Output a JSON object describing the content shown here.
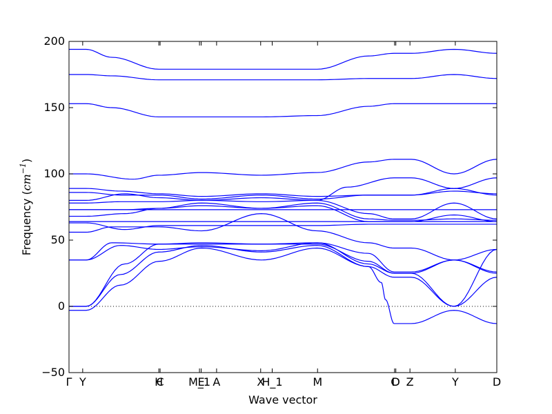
{
  "chart_data": {
    "type": "line",
    "title": "",
    "xlabel": "Wave vector",
    "ylabel": "Frequency (cm⁻¹)",
    "ylabel_prefix": "Frequency (",
    "ylabel_unit": "cm",
    "ylabel_exp": "−1",
    "ylabel_suffix": ")",
    "ylim": [
      -50,
      200
    ],
    "yticks": [
      -50,
      0,
      50,
      100,
      150,
      200
    ],
    "ytick_labels": [
      "−50",
      "0",
      "50",
      "100",
      "150",
      "200"
    ],
    "xlim": [
      0,
      1
    ],
    "xticks": [
      {
        "label": "Γ",
        "x": 0.0
      },
      {
        "label": "Y",
        "x": 0.032
      },
      {
        "label": "H",
        "x": 0.21
      },
      {
        "label": "C",
        "x": 0.213
      },
      {
        "label": "M_1",
        "x": 0.305
      },
      {
        "label": "E",
        "x": 0.309
      },
      {
        "label": "A",
        "x": 0.345
      },
      {
        "label": "X",
        "x": 0.448
      },
      {
        "label": "H_1",
        "x": 0.475
      },
      {
        "label": "M",
        "x": 0.581
      },
      {
        "label": "C",
        "x": 0.761
      },
      {
        "label": "D",
        "x": 0.764
      },
      {
        "label": "Z",
        "x": 0.797
      },
      {
        "label": "Y",
        "x": 0.903
      },
      {
        "label": "D",
        "x": 1.0
      }
    ],
    "zero_line": true,
    "line_color": "#0000ff",
    "series": [
      {
        "x": [
          0,
          0.04,
          0.1,
          0.21,
          0.35,
          0.45,
          0.58,
          0.7,
          0.76,
          0.8,
          0.9,
          1.0
        ],
        "y": [
          194,
          194,
          188,
          179,
          179,
          179,
          179,
          189,
          191,
          191,
          194,
          191
        ]
      },
      {
        "x": [
          0,
          0.04,
          0.1,
          0.21,
          0.35,
          0.45,
          0.58,
          0.7,
          0.76,
          0.8,
          0.9,
          1.0
        ],
        "y": [
          175,
          175,
          174,
          171,
          171,
          171,
          171,
          172,
          172,
          172,
          175,
          172
        ]
      },
      {
        "x": [
          0,
          0.04,
          0.1,
          0.21,
          0.35,
          0.45,
          0.58,
          0.7,
          0.76,
          0.8,
          0.9,
          1.0
        ],
        "y": [
          153,
          153,
          150,
          143,
          143,
          143,
          144,
          151,
          153,
          153,
          153,
          153
        ]
      },
      {
        "x": [
          0,
          0.04,
          0.15,
          0.21,
          0.31,
          0.45,
          0.58,
          0.7,
          0.76,
          0.8,
          0.9,
          1.0
        ],
        "y": [
          100,
          100,
          96,
          99,
          101,
          99,
          101,
          109,
          111,
          111,
          100,
          111
        ]
      },
      {
        "x": [
          0,
          0.04,
          0.12,
          0.21,
          0.31,
          0.45,
          0.58,
          0.7,
          0.76,
          0.8,
          0.9,
          1.0
        ],
        "y": [
          89,
          89,
          87,
          85,
          83,
          85,
          83,
          84,
          84,
          84,
          89,
          84
        ]
      },
      {
        "x": [
          0,
          0.04,
          0.12,
          0.21,
          0.31,
          0.45,
          0.58,
          0.7,
          0.76,
          0.8,
          0.9,
          1.0
        ],
        "y": [
          86,
          86,
          84,
          84,
          81,
          84,
          81,
          84,
          84,
          84,
          87,
          85
        ]
      },
      {
        "x": [
          0,
          0.04,
          0.13,
          0.21,
          0.31,
          0.45,
          0.58,
          0.65,
          0.76,
          0.8,
          0.9,
          1.0
        ],
        "y": [
          80,
          80,
          85,
          82,
          80,
          82,
          80,
          90,
          97,
          97,
          89,
          97
        ]
      },
      {
        "x": [
          0,
          0.04,
          0.12,
          0.21,
          0.31,
          0.45,
          0.58,
          0.7,
          0.76,
          0.8,
          0.9,
          1.0
        ],
        "y": [
          78,
          78,
          79,
          79,
          80,
          79,
          80,
          70,
          66,
          66,
          78,
          66
        ]
      },
      {
        "x": [
          0,
          0.04,
          0.13,
          0.21,
          0.31,
          0.45,
          0.58,
          0.7,
          0.76,
          0.8,
          0.9,
          1.0
        ],
        "y": [
          73,
          73,
          73,
          74,
          78,
          74,
          78,
          66,
          65,
          65,
          66,
          65
        ]
      },
      {
        "x": [
          0,
          0.04,
          0.21,
          0.31,
          0.45,
          0.58,
          0.76,
          0.8,
          0.9,
          1.0
        ],
        "y": [
          73,
          73,
          73,
          73,
          73,
          73,
          73,
          73,
          73,
          73
        ]
      },
      {
        "x": [
          0,
          0.04,
          0.13,
          0.21,
          0.31,
          0.45,
          0.58,
          0.7,
          0.76,
          0.8,
          0.9,
          1.0
        ],
        "y": [
          68,
          68,
          70,
          74,
          76,
          74,
          76,
          64,
          64,
          64,
          69,
          64
        ]
      },
      {
        "x": [
          0,
          0.04,
          0.21,
          0.31,
          0.45,
          0.58,
          0.76,
          0.8,
          0.9,
          1.0
        ],
        "y": [
          64,
          64,
          64,
          64,
          64,
          64,
          64,
          64,
          64,
          64
        ]
      },
      {
        "x": [
          0,
          0.04,
          0.13,
          0.21,
          0.31,
          0.45,
          0.58,
          0.7,
          0.76,
          0.8,
          0.9,
          1.0
        ],
        "y": [
          63,
          63,
          58,
          61,
          61,
          61,
          61,
          62,
          62,
          62,
          62,
          62
        ]
      },
      {
        "x": [
          0,
          0.04,
          0.1,
          0.21,
          0.31,
          0.45,
          0.58,
          0.7,
          0.76,
          0.8,
          0.9,
          1.0
        ],
        "y": [
          56,
          56,
          60,
          60,
          57,
          70,
          57,
          48,
          44,
          44,
          35,
          43
        ]
      },
      {
        "x": [
          0,
          0.04,
          0.1,
          0.21,
          0.31,
          0.45,
          0.58,
          0.7,
          0.76,
          0.8,
          0.9,
          1.0
        ],
        "y": [
          35,
          35,
          48,
          47,
          47,
          47,
          47,
          34,
          25,
          25,
          35,
          25
        ]
      },
      {
        "x": [
          0,
          0.04,
          0.12,
          0.21,
          0.31,
          0.45,
          0.58,
          0.7,
          0.76,
          0.8,
          0.9,
          1.0
        ],
        "y": [
          35,
          35,
          46,
          43,
          45,
          42,
          48,
          40,
          26,
          26,
          35,
          26
        ]
      },
      {
        "x": [
          0,
          0.04,
          0.13,
          0.21,
          0.31,
          0.45,
          0.58,
          0.7,
          0.76,
          0.8,
          0.9,
          1.0
        ],
        "y": [
          0,
          0,
          32,
          47,
          48,
          47,
          48,
          32,
          25,
          25,
          0,
          22
        ]
      },
      {
        "x": [
          0,
          0.04,
          0.12,
          0.21,
          0.31,
          0.45,
          0.58,
          0.7,
          0.76,
          0.8,
          0.9,
          1.0
        ],
        "y": [
          0,
          0,
          24,
          41,
          46,
          41,
          46,
          30,
          22,
          22,
          0,
          43
        ]
      },
      {
        "x": [
          0,
          0.04,
          0.12,
          0.21,
          0.31,
          0.45,
          0.58,
          0.7,
          0.73,
          0.74,
          0.76,
          0.8,
          0.9,
          1.0
        ],
        "y": [
          -3,
          -3,
          16,
          34,
          44,
          35,
          44,
          30,
          18,
          5,
          -13,
          -13,
          -3,
          -13
        ]
      }
    ]
  }
}
